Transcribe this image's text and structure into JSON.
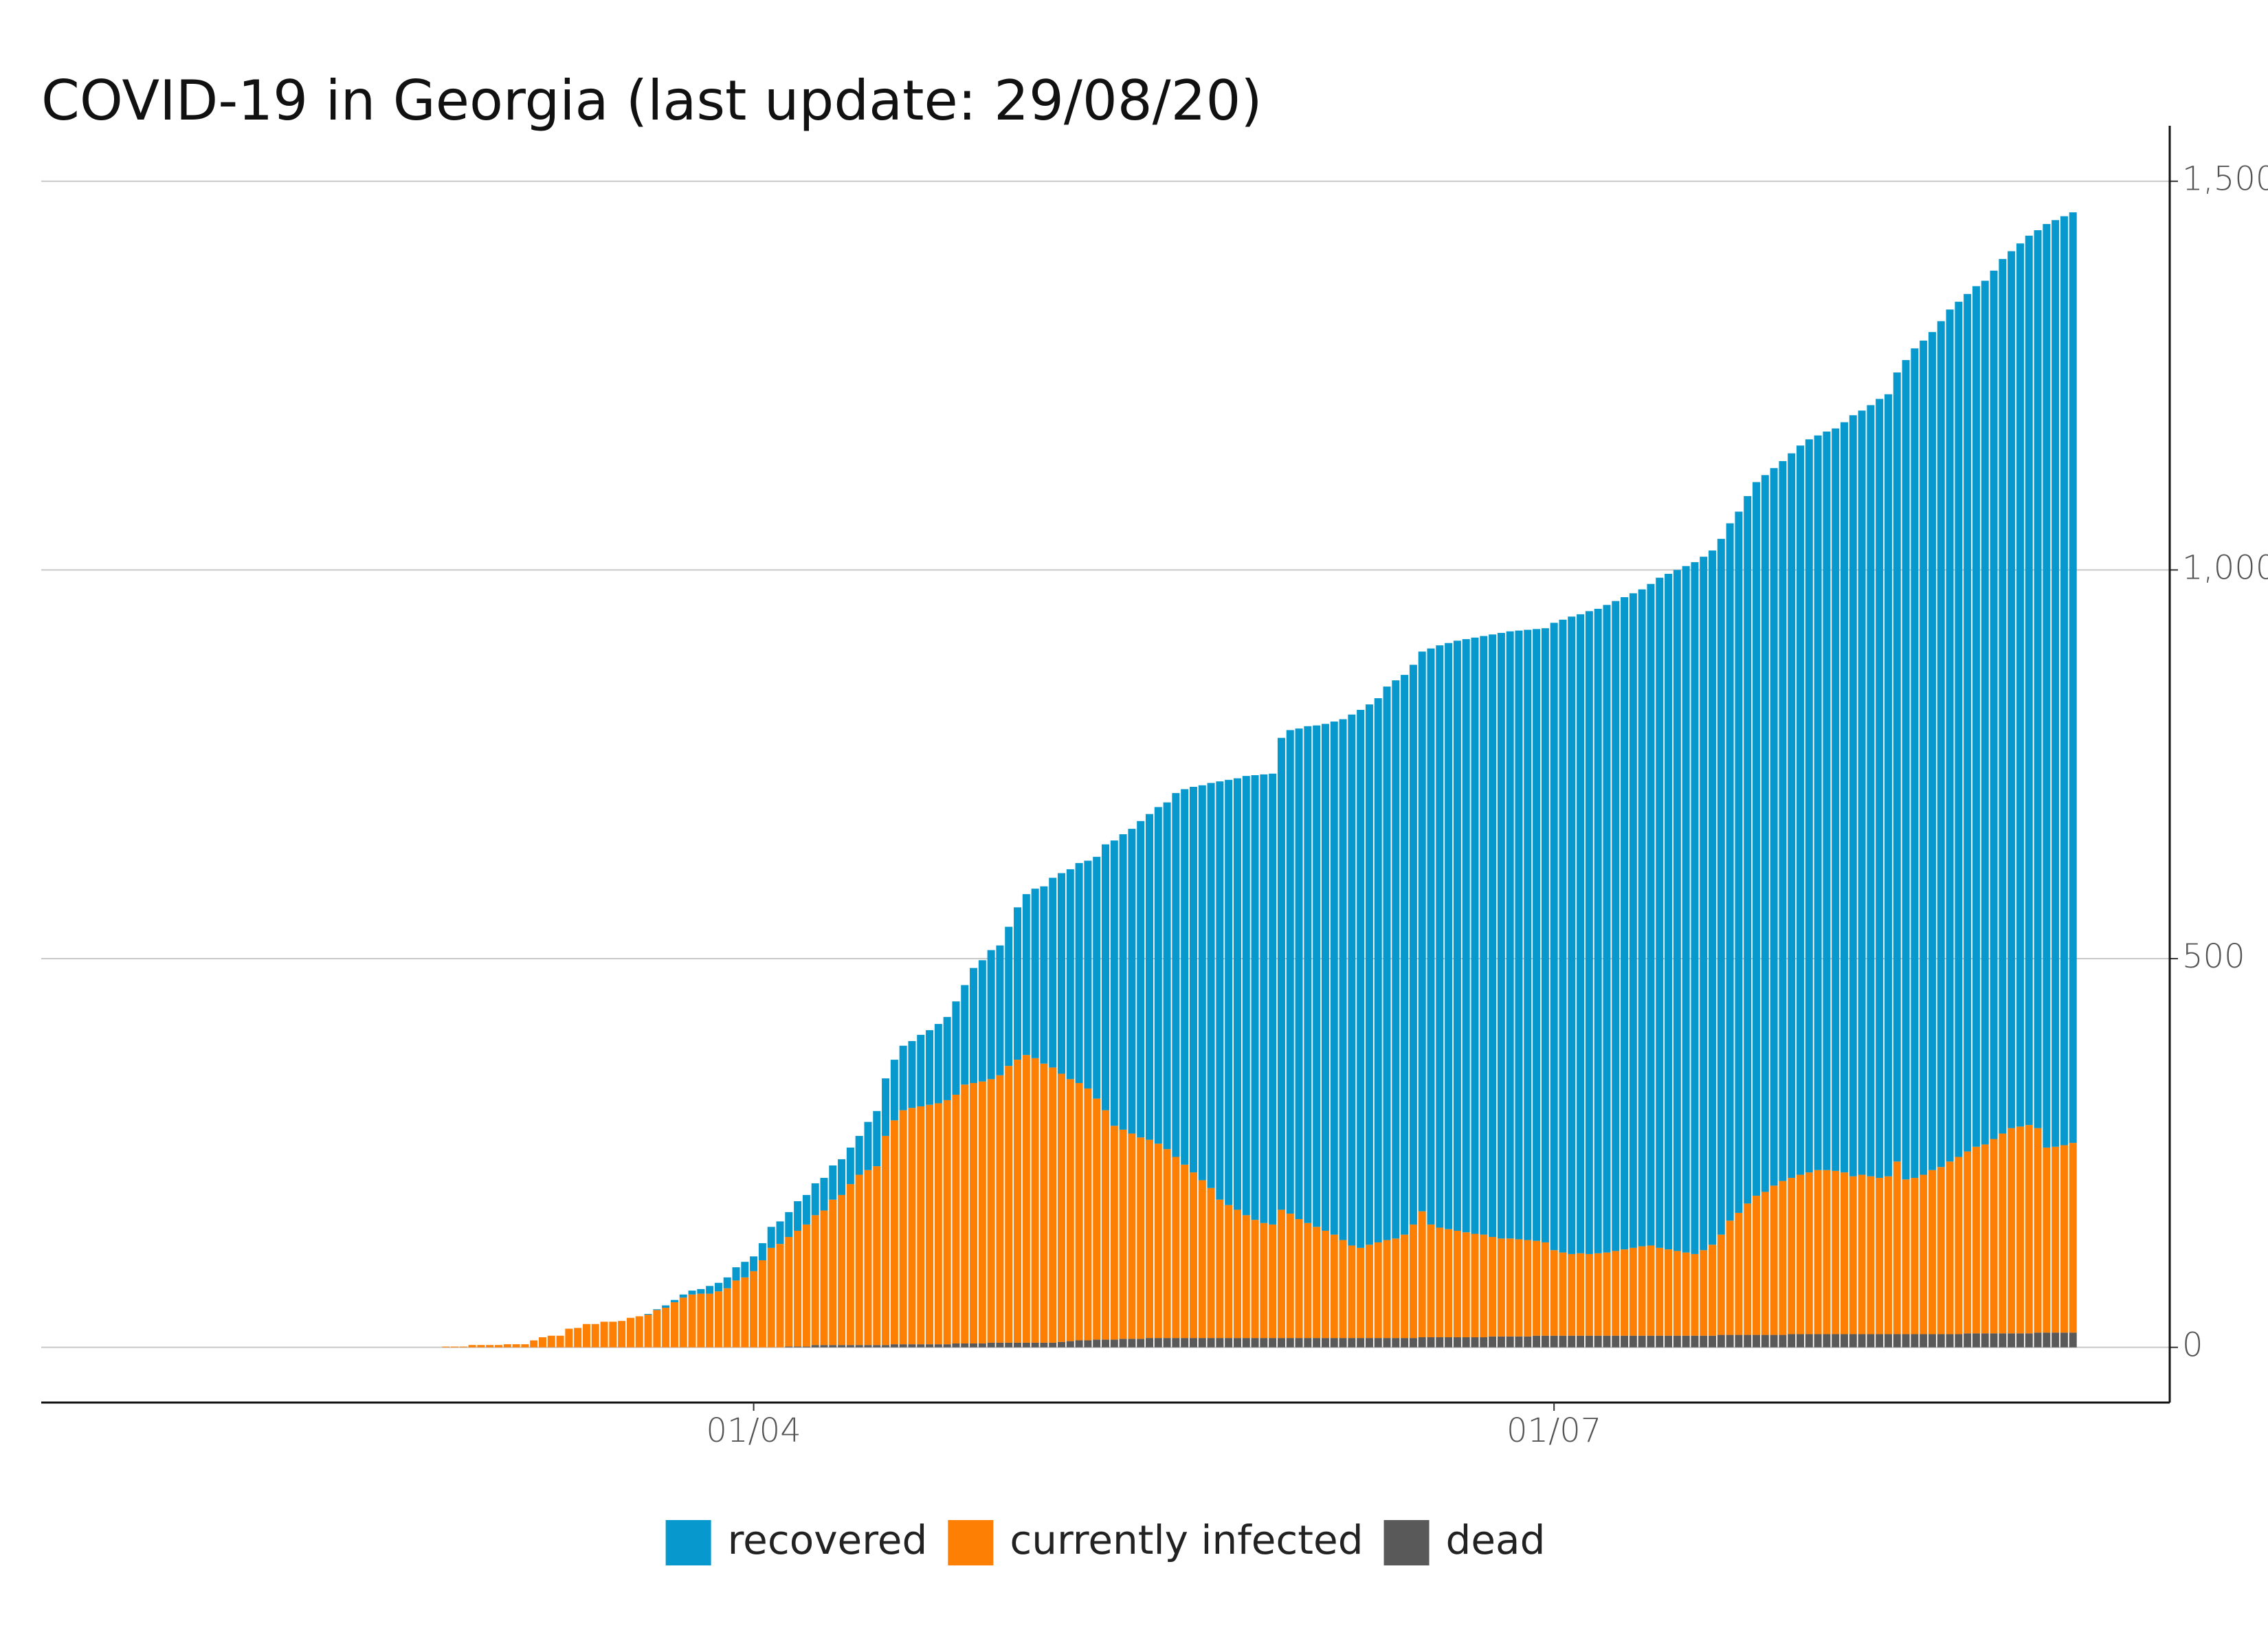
{
  "chart_data": {
    "type": "stacked-bar",
    "title": "COVID-19 in Georgia (last update: 29/08/20)",
    "x": [
      "26/02",
      "27/02",
      "28/02",
      "29/02",
      "01/03",
      "02/03",
      "03/03",
      "04/03",
      "05/03",
      "06/03",
      "07/03",
      "08/03",
      "09/03",
      "10/03",
      "11/03",
      "12/03",
      "13/03",
      "14/03",
      "15/03",
      "16/03",
      "17/03",
      "18/03",
      "19/03",
      "20/03",
      "21/03",
      "22/03",
      "23/03",
      "24/03",
      "25/03",
      "26/03",
      "27/03",
      "28/03",
      "29/03",
      "30/03",
      "31/03",
      "01/04",
      "02/04",
      "03/04",
      "04/04",
      "05/04",
      "06/04",
      "07/04",
      "08/04",
      "09/04",
      "10/04",
      "11/04",
      "12/04",
      "13/04",
      "14/04",
      "15/04",
      "16/04",
      "17/04",
      "18/04",
      "19/04",
      "20/04",
      "21/04",
      "22/04",
      "23/04",
      "24/04",
      "25/04",
      "26/04",
      "27/04",
      "28/04",
      "29/04",
      "30/04",
      "01/05",
      "02/05",
      "03/05",
      "04/05",
      "05/05",
      "06/05",
      "07/05",
      "08/05",
      "09/05",
      "10/05",
      "11/05",
      "12/05",
      "13/05",
      "14/05",
      "15/05",
      "16/05",
      "17/05",
      "18/05",
      "19/05",
      "20/05",
      "21/05",
      "22/05",
      "23/05",
      "24/05",
      "25/05",
      "26/05",
      "27/05",
      "28/05",
      "29/05",
      "30/05",
      "31/05",
      "01/06",
      "02/06",
      "03/06",
      "04/06",
      "05/06",
      "06/06",
      "07/06",
      "08/06",
      "09/06",
      "10/06",
      "11/06",
      "12/06",
      "13/06",
      "14/06",
      "15/06",
      "16/06",
      "17/06",
      "18/06",
      "19/06",
      "20/06",
      "21/06",
      "22/06",
      "23/06",
      "24/06",
      "25/06",
      "26/06",
      "27/06",
      "28/06",
      "29/06",
      "30/06",
      "01/07",
      "02/07",
      "03/07",
      "04/07",
      "05/07",
      "06/07",
      "07/07",
      "08/07",
      "09/07",
      "10/07",
      "11/07",
      "12/07",
      "13/07",
      "14/07",
      "15/07",
      "16/07",
      "17/07",
      "18/07",
      "19/07",
      "20/07",
      "21/07",
      "22/07",
      "23/07",
      "24/07",
      "25/07",
      "26/07",
      "27/07",
      "28/07",
      "29/07",
      "30/07",
      "31/07",
      "01/08",
      "02/08",
      "03/08",
      "04/08",
      "05/08",
      "06/08",
      "07/08",
      "08/08",
      "09/08",
      "10/08",
      "11/08",
      "12/08",
      "13/08",
      "14/08",
      "15/08",
      "16/08",
      "17/08",
      "18/08",
      "19/08",
      "20/08",
      "21/08",
      "22/08",
      "23/08",
      "24/08",
      "25/08",
      "26/08",
      "27/08",
      "28/08",
      "29/08"
    ],
    "xlim": [
      "11/01",
      "09/09"
    ],
    "xticks": [
      "01/04",
      "01/07"
    ],
    "ylim": [
      -71,
      1536
    ],
    "yticks": [
      0,
      500,
      {
        "value": 1000,
        "label": "1,000"
      },
      {
        "value": 1500,
        "label": "1,500"
      }
    ],
    "grid": true,
    "legend": "bottom",
    "series": [
      {
        "name": "recovered",
        "color": "#0799cd",
        "values": [
          0,
          0,
          0,
          0,
          0,
          0,
          0,
          0,
          0,
          0,
          0,
          0,
          0,
          0,
          0,
          0,
          0,
          0,
          0,
          0,
          0,
          0,
          0,
          1,
          1,
          3,
          3,
          4,
          5,
          6,
          10,
          11,
          14,
          17,
          20,
          19,
          22,
          27,
          29,
          32,
          38,
          38,
          41,
          42,
          44,
          46,
          47,
          50,
          62,
          71,
          74,
          78,
          83,
          86,
          92,
          96,
          102,
          107,
          120,
          128,
          148,
          156,
          166,
          167,
          179,
          196,
          207,
          218,
          228,
          244,
          258,
          270,
          283,
          293,
          311,
          342,
          367,
          380,
          392,
          407,
          419,
          433,
          446,
          468,
          483,
          496,
          508,
          521,
          538,
          547,
          555,
          565,
          572,
          577,
          580,
          607,
          622,
          631,
          639,
          645,
          652,
          660,
          670,
          683,
          692,
          695,
          700,
          712,
          718,
          720,
          720,
          720,
          741,
          749,
          754,
          759,
          763,
          767,
          770,
          775,
          779,
          781,
          783,
          785,
          787,
          790,
          807,
          814,
          820,
          822,
          827,
          829,
          833,
          836,
          839,
          842,
          845,
          851,
          862,
          869,
          876,
          883,
          890,
          892,
          893,
          895,
          897,
          902,
          910,
          918,
          922,
          923,
          926,
          932,
          938,
          943,
          945,
          950,
          955,
          965,
          979,
          983,
          992,
          1002,
          1006,
          1015,
          1054,
          1067,
          1073,
          1078,
          1088,
          1096,
          1100,
          1103,
          1107,
          1111,
          1117,
          1125,
          1128,
          1136,
          1144,
          1155,
          1188,
          1192,
          1195,
          1197
        ]
      },
      {
        "name": "currently infected",
        "color": "#fd7f04",
        "values": [
          1,
          1,
          1,
          3,
          3,
          3,
          3,
          4,
          4,
          4,
          9,
          13,
          15,
          15,
          24,
          25,
          30,
          30,
          33,
          33,
          34,
          38,
          40,
          42,
          48,
          51,
          58,
          64,
          68,
          69,
          69,
          72,
          76,
          86,
          90,
          98,
          112,
          128,
          133,
          141,
          149,
          157,
          167,
          173,
          187,
          193,
          207,
          219,
          225,
          230,
          269,
          288,
          301,
          304,
          306,
          308,
          310,
          314,
          320,
          333,
          335,
          337,
          339,
          344,
          356,
          364,
          370,
          366,
          359,
          354,
          345,
          337,
          331,
          324,
          310,
          295,
          275,
          269,
          264,
          259,
          255,
          250,
          243,
          233,
          223,
          213,
          203,
          193,
          178,
          171,
          165,
          158,
          152,
          148,
          146,
          165,
          160,
          153,
          148,
          143,
          138,
          133,
          126,
          119,
          116,
          120,
          123,
          126,
          128,
          133,
          146,
          162,
          145,
          141,
          139,
          137,
          135,
          133,
          132,
          128,
          126,
          126,
          125,
          124,
          122,
          120,
          110,
          107,
          105,
          106,
          105,
          106,
          107,
          109,
          111,
          113,
          115,
          116,
          113,
          111,
          109,
          107,
          105,
          110,
          117,
          129,
          147,
          157,
          169,
          179,
          184,
          192,
          198,
          201,
          205,
          208,
          211,
          211,
          210,
          208,
          203,
          205,
          203,
          201,
          203,
          222,
          199,
          201,
          205,
          211,
          215,
          222,
          228,
          234,
          240,
          243,
          250,
          257,
          264,
          266,
          268,
          263,
          238,
          239,
          241,
          244
        ]
      },
      {
        "name": "dead",
        "color": "#595959",
        "values": [
          0,
          0,
          0,
          0,
          0,
          0,
          0,
          0,
          0,
          0,
          0,
          0,
          0,
          0,
          0,
          0,
          0,
          0,
          0,
          0,
          0,
          0,
          0,
          0,
          0,
          0,
          0,
          0,
          0,
          0,
          0,
          0,
          0,
          0,
          0,
          0,
          0,
          0,
          0,
          1,
          1,
          1,
          3,
          3,
          3,
          3,
          3,
          3,
          3,
          3,
          3,
          4,
          4,
          4,
          4,
          4,
          4,
          4,
          5,
          5,
          5,
          5,
          6,
          6,
          6,
          6,
          6,
          6,
          6,
          6,
          7,
          8,
          9,
          9,
          10,
          10,
          10,
          11,
          11,
          11,
          12,
          12,
          12,
          12,
          12,
          12,
          12,
          12,
          12,
          12,
          12,
          12,
          12,
          12,
          12,
          12,
          12,
          12,
          12,
          12,
          12,
          12,
          12,
          12,
          12,
          12,
          12,
          12,
          12,
          12,
          12,
          13,
          13,
          13,
          13,
          13,
          13,
          13,
          13,
          14,
          14,
          14,
          14,
          14,
          15,
          15,
          15,
          15,
          15,
          15,
          15,
          15,
          15,
          15,
          15,
          15,
          15,
          15,
          15,
          15,
          15,
          15,
          15,
          15,
          15,
          16,
          16,
          16,
          16,
          16,
          16,
          16,
          16,
          17,
          17,
          17,
          17,
          17,
          17,
          17,
          17,
          17,
          17,
          17,
          17,
          17,
          17,
          17,
          17,
          17,
          17,
          17,
          17,
          18,
          18,
          18,
          18,
          18,
          18,
          18,
          18,
          19,
          19,
          19,
          19,
          19
        ]
      }
    ]
  }
}
